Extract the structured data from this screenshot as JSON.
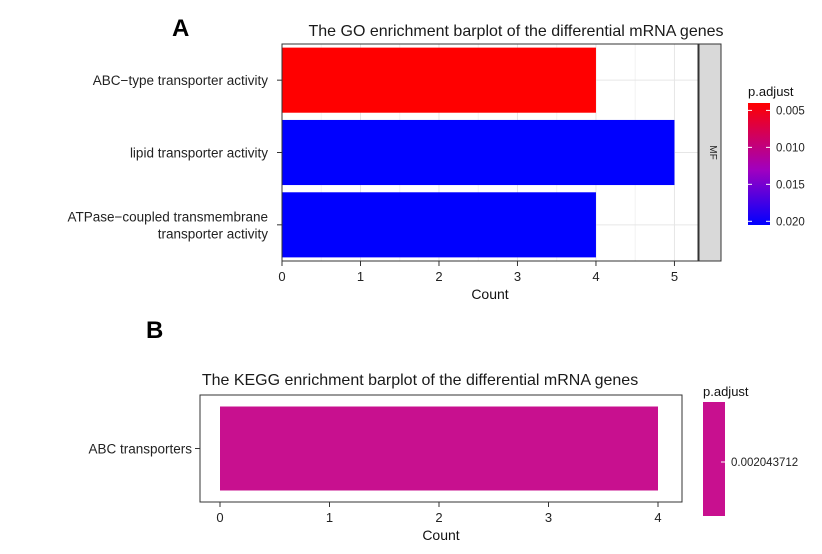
{
  "chart_data": [
    {
      "panel_label": "A",
      "type": "bar",
      "orientation": "horizontal",
      "title": "The GO enrichment barplot of the differential mRNA genes",
      "xlabel": "Count",
      "ylabel": "",
      "xlim": [
        0,
        5.3
      ],
      "xticks": [
        "0",
        "1",
        "2",
        "3",
        "4",
        "5"
      ],
      "facet_label": "MF",
      "categories": [
        [
          "ABC−type transporter activity"
        ],
        [
          "lipid transporter activity"
        ],
        [
          "ATPase−coupled transmembrane",
          "transporter activity"
        ]
      ],
      "values": [
        4,
        5,
        4
      ],
      "p_adjust": [
        0.005,
        0.02,
        0.02
      ],
      "bar_colors": [
        "#ff0000",
        "#0000ff",
        "#0000ff"
      ],
      "legend": {
        "title": "p.adjust",
        "position": "right",
        "ticks": [
          "0.005",
          "0.010",
          "0.015",
          "0.020"
        ],
        "gradient": [
          "#ff0000",
          "#0000ff"
        ]
      },
      "grid": true
    },
    {
      "panel_label": "B",
      "type": "bar",
      "orientation": "horizontal",
      "title": "The KEGG enrichment barplot of the differential mRNA genes",
      "xlabel": "Count",
      "ylabel": "",
      "xlim": [
        0,
        4.2
      ],
      "xticks": [
        "0",
        "1",
        "2",
        "3",
        "4"
      ],
      "categories": [
        [
          "ABC transporters"
        ]
      ],
      "values": [
        4
      ],
      "p_adjust": [
        0.002043712
      ],
      "bar_colors": [
        "#c8108f"
      ],
      "legend": {
        "title": "p.adjust",
        "position": "right",
        "ticks": [
          "0.002043712"
        ],
        "gradient": [
          "#c8108f",
          "#c8108f"
        ]
      },
      "grid": false
    }
  ]
}
